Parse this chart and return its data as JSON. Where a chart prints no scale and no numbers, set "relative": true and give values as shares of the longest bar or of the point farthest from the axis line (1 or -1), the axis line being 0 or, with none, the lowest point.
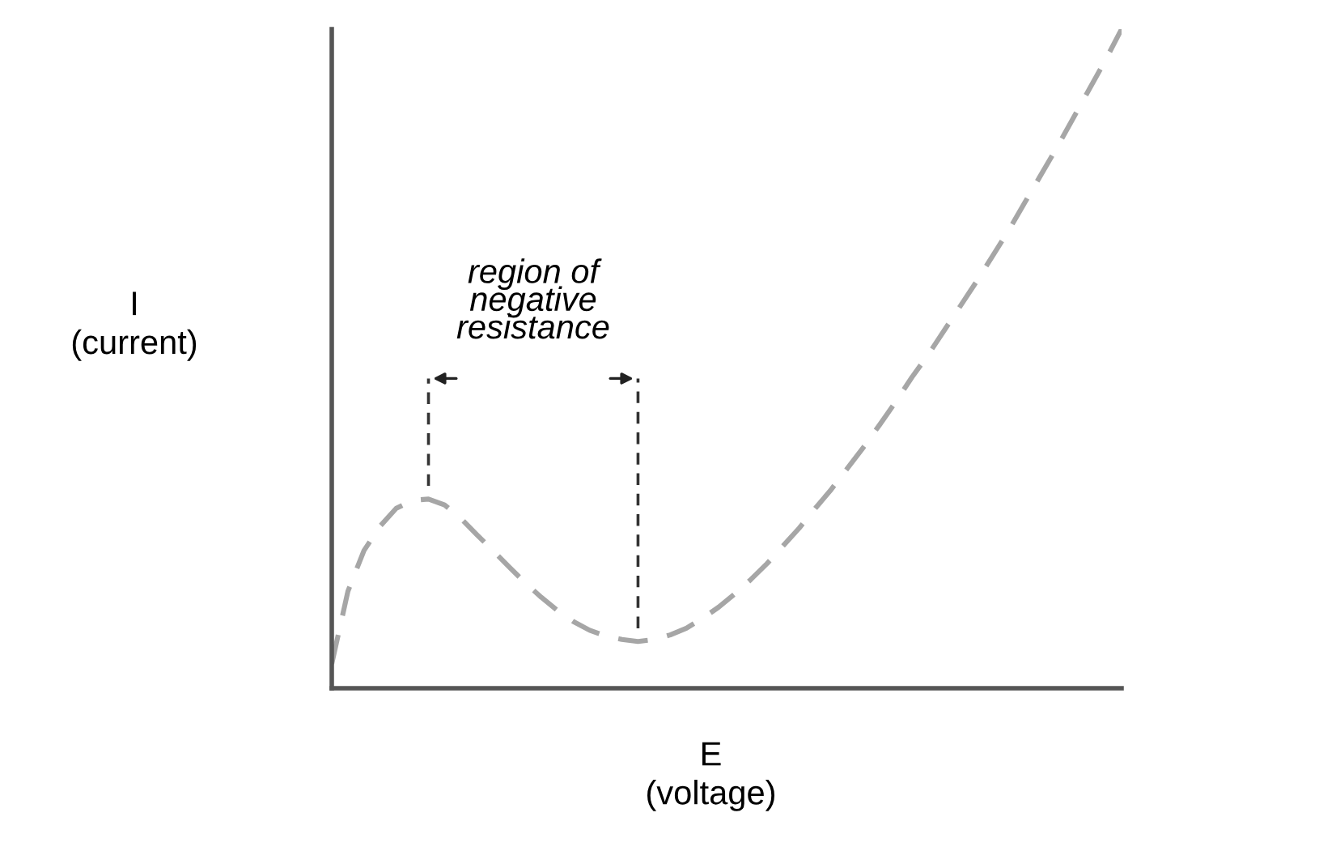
{
  "chart_data": {
    "type": "line",
    "relative": true,
    "xlabel": "E\n(voltage)",
    "ylabel": "I\n(current)",
    "annotations": [
      "region of\nnegative\nresistance"
    ],
    "categories": [
      null,
      null,
      null,
      null,
      null,
      null,
      null,
      null,
      null,
      null,
      null,
      null,
      null,
      null,
      null,
      null,
      null,
      null,
      null,
      null,
      null,
      null,
      null,
      null,
      null,
      null,
      null,
      null,
      null,
      null,
      null,
      null,
      null,
      null,
      null,
      null,
      null,
      null,
      null,
      null,
      null,
      null,
      null,
      null,
      null,
      null,
      null,
      null,
      null,
      null
    ],
    "series": [
      {
        "color": "#a6a6a6",
        "values": [
          0.037,
          0.147,
          0.209,
          0.246,
          0.273,
          0.285,
          0.287,
          0.278,
          0.258,
          0.233,
          0.209,
          0.184,
          0.16,
          0.138,
          0.118,
          0.101,
          0.088,
          0.079,
          0.074,
          0.071,
          0.074,
          0.081,
          0.091,
          0.106,
          0.123,
          0.143,
          0.165,
          0.189,
          0.216,
          0.243,
          0.273,
          0.302,
          0.334,
          0.366,
          0.4,
          0.435,
          0.472,
          0.506,
          0.543,
          0.58,
          0.617,
          0.656,
          0.695,
          0.737,
          0.779,
          0.821,
          0.865,
          0.909,
          0.953,
          1.0
        ]
      }
    ],
    "line_style": "dashed",
    "marker": "none"
  }
}
